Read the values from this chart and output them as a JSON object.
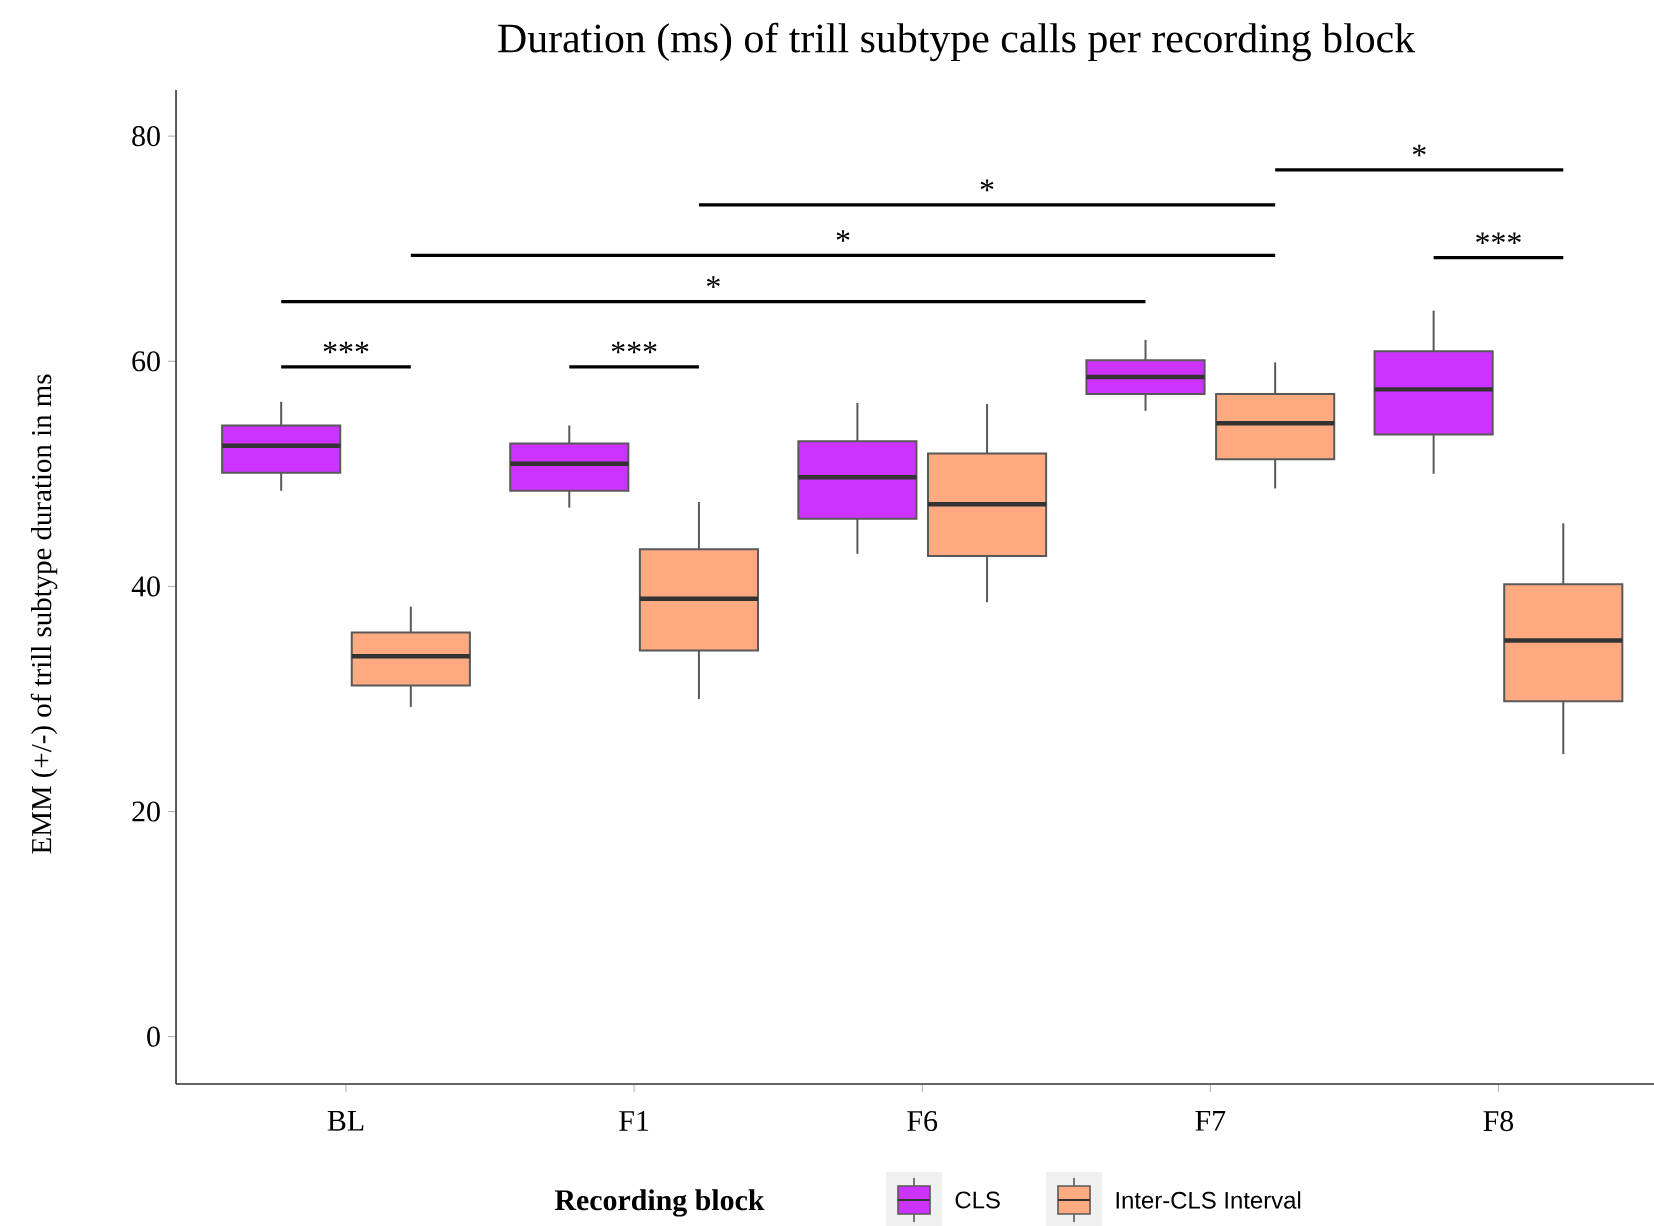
{
  "chart_data": {
    "type": "box",
    "title": "Duration (ms) of trill subtype calls per recording block",
    "ylabel": "EMM (+/-) of trill subtype duration in ms",
    "legend_title": "Recording block",
    "categories": [
      "BL",
      "F1",
      "F6",
      "F7",
      "F8"
    ],
    "series": [
      {
        "name": "CLS",
        "color": "#cc33ff",
        "boxes": [
          {
            "low": 48.5,
            "q1": 50.1,
            "median": 52.5,
            "q3": 54.3,
            "high": 56.4
          },
          {
            "low": 47.0,
            "q1": 48.5,
            "median": 50.9,
            "q3": 52.7,
            "high": 54.3
          },
          {
            "low": 42.9,
            "q1": 46.0,
            "median": 49.7,
            "q3": 52.9,
            "high": 56.3
          },
          {
            "low": 55.6,
            "q1": 57.1,
            "median": 58.6,
            "q3": 60.1,
            "high": 61.9
          },
          {
            "low": 50.0,
            "q1": 53.5,
            "median": 57.5,
            "q3": 60.9,
            "high": 64.5
          }
        ]
      },
      {
        "name": "Inter-CLS Interval",
        "color": "#ffaa80",
        "boxes": [
          {
            "low": 29.3,
            "q1": 31.2,
            "median": 33.8,
            "q3": 35.9,
            "high": 38.2
          },
          {
            "low": 30.0,
            "q1": 34.3,
            "median": 38.9,
            "q3": 43.3,
            "high": 47.5
          },
          {
            "low": 38.6,
            "q1": 42.7,
            "median": 47.3,
            "q3": 51.8,
            "high": 56.2
          },
          {
            "low": 48.7,
            "q1": 51.3,
            "median": 54.5,
            "q3": 57.1,
            "high": 59.9
          },
          {
            "low": 25.1,
            "q1": 29.8,
            "median": 35.2,
            "q3": 40.2,
            "high": 45.6
          }
        ]
      }
    ],
    "ylim": [
      -4.2,
      84.1
    ],
    "yticks": [
      0,
      20,
      40,
      60,
      80
    ],
    "grid": false,
    "legend": "bottom",
    "annotations": [
      "***",
      "***",
      "*",
      "*",
      "*",
      "*",
      "***"
    ]
  }
}
